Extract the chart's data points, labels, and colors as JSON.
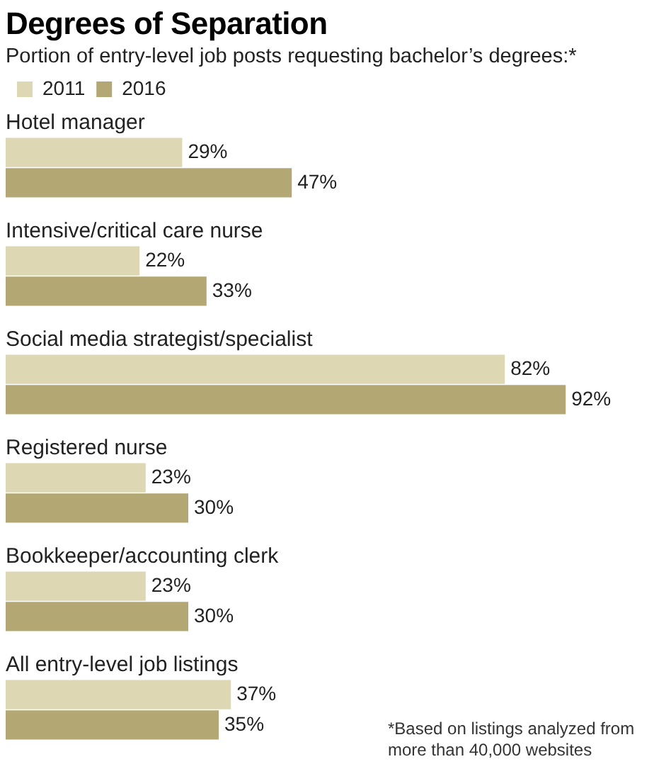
{
  "chart_data": {
    "type": "bar",
    "orientation": "horizontal",
    "title": "Degrees of Separation",
    "subtitle": "Portion of entry-level job posts requesting bachelor’s degrees:*",
    "legend": "top left",
    "categories": [
      "Hotel manager",
      "Intensive/critical care nurse",
      "Social media strategist/specialist",
      "Registered nurse",
      "Bookkeeper/accounting clerk",
      "All entry-level job listings"
    ],
    "series": [
      {
        "name": "2011",
        "color": "#ddd7b3",
        "values": [
          29,
          22,
          82,
          23,
          23,
          37
        ],
        "value_labels": [
          "29%",
          "22%",
          "82%",
          "23%",
          "23%",
          "37%"
        ]
      },
      {
        "name": "2016",
        "color": "#b3a873",
        "values": [
          47,
          33,
          92,
          30,
          30,
          35
        ],
        "value_labels": [
          "47%",
          "33%",
          "92%",
          "30%",
          "30%",
          "35%"
        ]
      }
    ],
    "annotations": [
      "*Based on listings analyzed from more than 40,000 websites"
    ]
  }
}
